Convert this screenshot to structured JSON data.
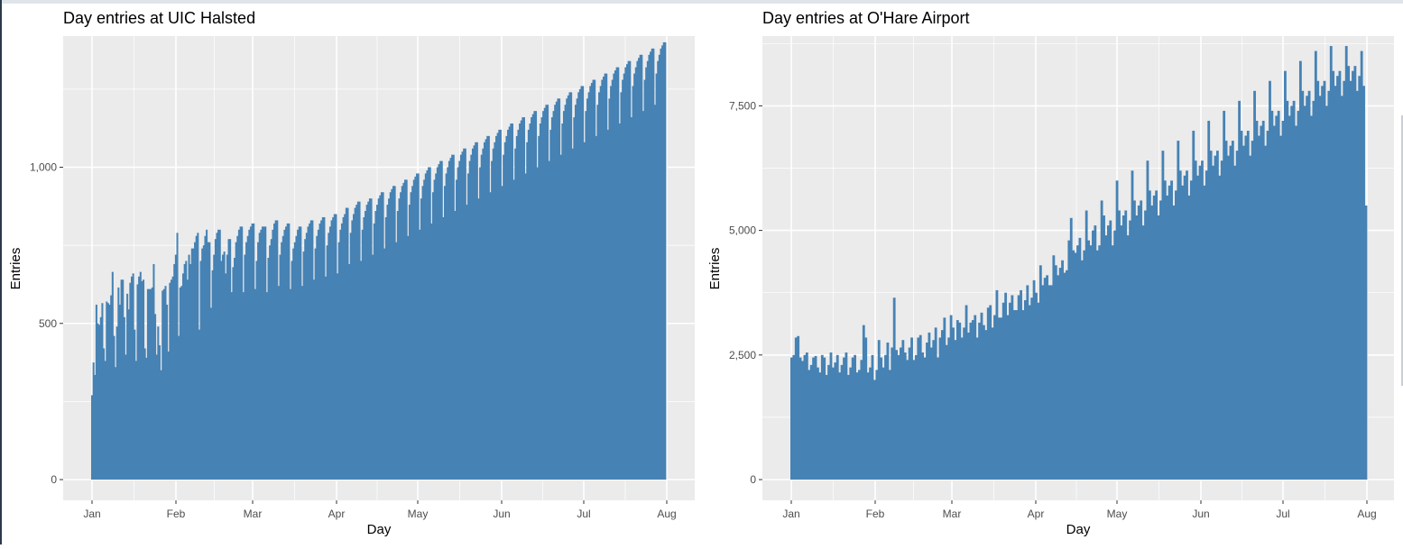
{
  "chart_data": [
    {
      "type": "bar",
      "title": "Day entries at UIC Halsted",
      "xlabel": "Day",
      "ylabel": "Entries",
      "x_ticks": [
        "Jan",
        "Feb",
        "Mar",
        "Apr",
        "May",
        "Jun",
        "Jul",
        "Aug"
      ],
      "y_ticks": [
        "0",
        "500",
        "1,000"
      ],
      "y_tick_values": [
        0,
        500,
        1000
      ],
      "ylim": [
        0,
        1420
      ],
      "grid": true,
      "bar_color": "#4682b4",
      "panel_color": "#ebebeb",
      "values": [
        270,
        375,
        335,
        560,
        500,
        495,
        520,
        565,
        420,
        380,
        570,
        565,
        560,
        590,
        665,
        460,
        360,
        490,
        615,
        560,
        640,
        640,
        520,
        400,
        595,
        545,
        630,
        650,
        660,
        480,
        380,
        625,
        650,
        665,
        635,
        640,
        420,
        390,
        610,
        610,
        610,
        615,
        690,
        530,
        400,
        490,
        430,
        350,
        605,
        610,
        620,
        560,
        410,
        630,
        640,
        650,
        690,
        720,
        790,
        460,
        615,
        620,
        660,
        690,
        700,
        640,
        720,
        690,
        740,
        740,
        760,
        780,
        790,
        480,
        700,
        740,
        750,
        780,
        800,
        760,
        760,
        550,
        670,
        720,
        770,
        790,
        800,
        800,
        700,
        720,
        730,
        660,
        720,
        770,
        770,
        600,
        680,
        710,
        760,
        780,
        800,
        810,
        810,
        600,
        720,
        760,
        780,
        800,
        810,
        820,
        820,
        610,
        700,
        760,
        790,
        800,
        810,
        810,
        810,
        600,
        710,
        750,
        770,
        800,
        820,
        830,
        830,
        620,
        720,
        760,
        780,
        800,
        810,
        820,
        820,
        610,
        700,
        740,
        760,
        780,
        800,
        810,
        810,
        620,
        730,
        770,
        790,
        810,
        820,
        830,
        830,
        640,
        740,
        780,
        800,
        820,
        830,
        840,
        840,
        650,
        750,
        790,
        810,
        830,
        840,
        850,
        850,
        660,
        760,
        800,
        820,
        840,
        850,
        870,
        870,
        690,
        790,
        830,
        850,
        870,
        880,
        890,
        890,
        700,
        800,
        840,
        860,
        880,
        890,
        900,
        900,
        720,
        820,
        860,
        880,
        900,
        910,
        920,
        920,
        740,
        840,
        880,
        900,
        920,
        930,
        940,
        940,
        760,
        860,
        900,
        920,
        940,
        950,
        960,
        960,
        780,
        880,
        920,
        940,
        960,
        970,
        980,
        980,
        800,
        900,
        940,
        960,
        980,
        990,
        1000,
        1000,
        820,
        920,
        960,
        980,
        1000,
        1010,
        1020,
        1020,
        840,
        940,
        980,
        1000,
        1020,
        1030,
        1040,
        1040,
        860,
        960,
        1000,
        1020,
        1040,
        1050,
        1060,
        1060,
        880,
        980,
        1020,
        1040,
        1060,
        1070,
        1080,
        1080,
        900,
        1000,
        1040,
        1060,
        1080,
        1090,
        1100,
        1100,
        920,
        1020,
        1060,
        1080,
        1100,
        1110,
        1120,
        1120,
        940,
        1040,
        1080,
        1100,
        1120,
        1130,
        1140,
        1140,
        960,
        1060,
        1100,
        1120,
        1140,
        1150,
        1160,
        1160,
        980,
        1080,
        1120,
        1140,
        1160,
        1170,
        1180,
        1180,
        1000,
        1100,
        1140,
        1160,
        1180,
        1190,
        1200,
        1200,
        1020,
        1120,
        1160,
        1180,
        1200,
        1210,
        1220,
        1220,
        1040,
        1140,
        1180,
        1200,
        1220,
        1230,
        1240,
        1240,
        1060,
        1160,
        1200,
        1220,
        1240,
        1250,
        1260,
        1260,
        1080,
        1180,
        1220,
        1240,
        1260,
        1270,
        1280,
        1280,
        1100,
        1200,
        1240,
        1260,
        1280,
        1290,
        1300,
        1300,
        1120,
        1220,
        1260,
        1280,
        1300,
        1310,
        1320,
        1320,
        1140,
        1240,
        1280,
        1300,
        1320,
        1330,
        1340,
        1340,
        1160,
        1260,
        1300,
        1320,
        1340,
        1350,
        1360,
        1360,
        1180,
        1280,
        1320,
        1340,
        1360,
        1370,
        1380,
        1380,
        1200,
        1300,
        1340,
        1360,
        1380,
        1390,
        1400,
        1400
      ]
    },
    {
      "type": "bar",
      "title": "Day entries at O'Hare Airport",
      "xlabel": "Day",
      "ylabel": "Entries",
      "x_ticks": [
        "Jan",
        "Feb",
        "Mar",
        "Apr",
        "May",
        "Jun",
        "Jul",
        "Aug"
      ],
      "y_ticks": [
        "0",
        "2,500",
        "5,000",
        "7,500"
      ],
      "y_tick_values": [
        0,
        2500,
        5000,
        7500
      ],
      "ylim": [
        0,
        8900
      ],
      "grid": true,
      "bar_color": "#4682b4",
      "panel_color": "#ebebeb",
      "values": [
        2450,
        2500,
        2850,
        2880,
        2450,
        2380,
        2500,
        2550,
        2200,
        2300,
        2450,
        2480,
        2250,
        2150,
        2500,
        2450,
        2100,
        2300,
        2550,
        2250,
        2350,
        2500,
        2150,
        2300,
        2450,
        2550,
        2100,
        2250,
        2450,
        2500,
        2150,
        2200,
        2400,
        3100,
        2850,
        2150,
        2250,
        2500,
        2000,
        2200,
        2800,
        2450,
        2250,
        2500,
        2750,
        2200,
        2650,
        3650,
        2600,
        2500,
        2650,
        2800,
        2550,
        2400,
        2650,
        2850,
        2400,
        2500,
        2850,
        2900,
        2550,
        2450,
        2750,
        2950,
        2650,
        2800,
        3050,
        2450,
        2850,
        3000,
        3250,
        2700,
        2850,
        3300,
        3050,
        2800,
        3200,
        3150,
        2850,
        3050,
        3500,
        2950,
        3150,
        3200,
        3300,
        2850,
        3150,
        3350,
        3100,
        3000,
        3450,
        3500,
        3050,
        3300,
        3800,
        3250,
        3250,
        3550,
        3750,
        3300,
        3550,
        3700,
        3400,
        3400,
        3700,
        3800,
        3400,
        3600,
        3900,
        3500,
        3650,
        4000,
        3750,
        3550,
        4300,
        3900,
        4050,
        4100,
        3900,
        3900,
        4500,
        4300,
        4100,
        4250,
        4400,
        4150,
        4200,
        4800,
        5250,
        4600,
        4550,
        4700,
        4850,
        4400,
        4600,
        5400,
        4800,
        4700,
        5000,
        5100,
        4600,
        4700,
        5600,
        5300,
        4900,
        5100,
        5200,
        4700,
        5000,
        6000,
        5400,
        5100,
        5300,
        5400,
        4900,
        5200,
        6200,
        5600,
        5300,
        5500,
        5600,
        5100,
        5400,
        6400,
        5800,
        5500,
        5700,
        5800,
        5300,
        5600,
        6600,
        6000,
        5700,
        5900,
        6000,
        5500,
        5800,
        6800,
        6200,
        5900,
        6100,
        6200,
        5700,
        6000,
        7000,
        6400,
        6100,
        6300,
        6400,
        5900,
        6200,
        7200,
        6600,
        6300,
        6500,
        6600,
        6100,
        6400,
        7400,
        6800,
        6500,
        6700,
        6800,
        6300,
        6600,
        7600,
        7000,
        6700,
        6900,
        7000,
        6500,
        6800,
        7800,
        7200,
        6900,
        7100,
        7200,
        6700,
        7000,
        8000,
        7400,
        7100,
        7300,
        7400,
        6900,
        7200,
        8200,
        7600,
        7300,
        7500,
        7600,
        7100,
        7400,
        8400,
        7800,
        7500,
        7700,
        7800,
        7300,
        7600,
        8600,
        8000,
        7700,
        7900,
        8000,
        7500,
        7800,
        8700,
        8200,
        7900,
        8100,
        8200,
        7700,
        8000,
        8700,
        8300,
        8000,
        8200,
        8300,
        7800,
        8100,
        8600,
        7900,
        5500
      ]
    }
  ]
}
